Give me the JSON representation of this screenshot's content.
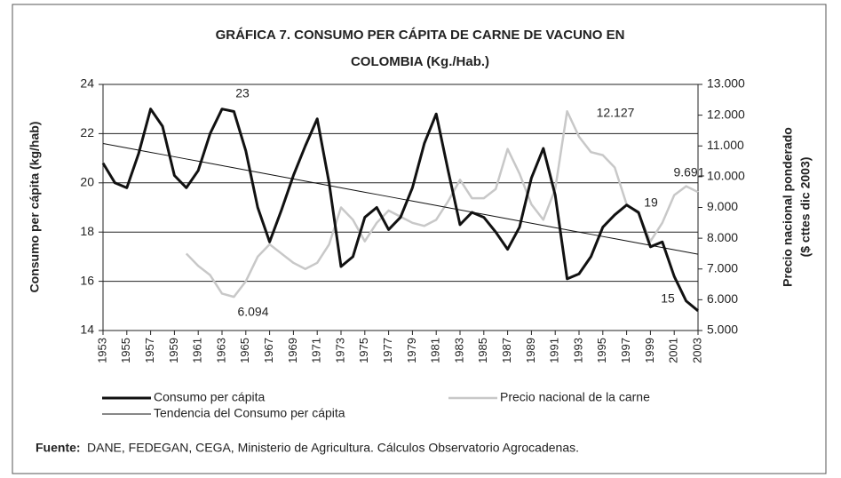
{
  "chart_data": {
    "type": "line",
    "title": [
      "GRÁFICA 7. CONSUMO PER CÁPITA DE CARNE DE VACUNO EN",
      "COLOMBIA (Kg./Hab.)"
    ],
    "ylabel": "Consumo per cápita (kg/hab)",
    "y2label": [
      "Precio nacional ponderado",
      "($ cttes dic 2003)"
    ],
    "x": [
      1953,
      1954,
      1955,
      1956,
      1957,
      1958,
      1959,
      1960,
      1961,
      1962,
      1963,
      1964,
      1965,
      1966,
      1967,
      1968,
      1969,
      1970,
      1971,
      1972,
      1973,
      1974,
      1975,
      1976,
      1977,
      1978,
      1979,
      1980,
      1981,
      1982,
      1983,
      1984,
      1985,
      1986,
      1987,
      1988,
      1989,
      1990,
      1991,
      1992,
      1993,
      1994,
      1995,
      1996,
      1997,
      1998,
      1999,
      2000,
      2001,
      2002,
      2003
    ],
    "xlim": [
      1953,
      2003
    ],
    "xticks": [
      1953,
      1955,
      1957,
      1959,
      1961,
      1963,
      1965,
      1967,
      1969,
      1971,
      1973,
      1975,
      1977,
      1979,
      1981,
      1983,
      1985,
      1987,
      1989,
      1991,
      1993,
      1995,
      1997,
      1999,
      2001,
      2003
    ],
    "ylim": [
      14,
      24
    ],
    "yticks": [
      14,
      16,
      18,
      20,
      22,
      24
    ],
    "y2lim": [
      5000,
      13000
    ],
    "y2ticks": [
      {
        "value": 5000,
        "label": "5.000"
      },
      {
        "value": 6000,
        "label": "6.000"
      },
      {
        "value": 7000,
        "label": "7.000"
      },
      {
        "value": 8000,
        "label": "8.000"
      },
      {
        "value": 9000,
        "label": "9.000"
      },
      {
        "value": 10000,
        "label": "10.000"
      },
      {
        "value": 11000,
        "label": "11.000"
      },
      {
        "value": 12000,
        "label": "12.000"
      },
      {
        "value": 13000,
        "label": "13.000"
      }
    ],
    "grid": true,
    "series": [
      {
        "name": "Consumo per cápita",
        "color": "#111111",
        "width": 3,
        "values": [
          20.8,
          20.0,
          19.8,
          21.2,
          23.0,
          22.3,
          20.3,
          19.8,
          20.5,
          22.0,
          23.0,
          22.9,
          21.3,
          19.0,
          17.6,
          18.9,
          20.3,
          21.5,
          22.6,
          20.0,
          16.6,
          17.0,
          18.6,
          19.0,
          18.1,
          18.6,
          19.8,
          21.6,
          22.8,
          20.5,
          18.3,
          18.8,
          18.6,
          18.0,
          17.3,
          18.2,
          20.2,
          21.4,
          19.5,
          16.1,
          16.3,
          17.0,
          18.2,
          18.7,
          19.1,
          18.8,
          17.4,
          17.6,
          16.2,
          15.2,
          14.8
        ]
      },
      {
        "name": "Precio nacional de la carne",
        "color": "#c8c8c8",
        "width": 2.5,
        "axis": "y2",
        "values": [
          null,
          null,
          null,
          null,
          null,
          null,
          null,
          7500,
          7100,
          6800,
          6200,
          6094,
          6600,
          7400,
          7800,
          7500,
          7200,
          7000,
          7200,
          7800,
          9000,
          8600,
          7900,
          8500,
          8900,
          8700,
          8500,
          8400,
          8600,
          9200,
          9900,
          9300,
          9300,
          9600,
          10900,
          10100,
          9100,
          8600,
          9600,
          12127,
          11300,
          10800,
          10700,
          10300,
          9100,
          8800,
          7900,
          8500,
          9400,
          9691,
          9500
        ]
      },
      {
        "name": "Tendencia del Consumo per cápita",
        "color": "#111111",
        "width": 1,
        "values": [
          21.6,
          21.51,
          21.42,
          21.33,
          21.24,
          21.15,
          21.06,
          20.97,
          20.88,
          20.79,
          20.7,
          20.61,
          20.52,
          20.43,
          20.34,
          20.25,
          20.16,
          20.07,
          19.98,
          19.89,
          19.8,
          19.71,
          19.62,
          19.53,
          19.44,
          19.35,
          19.26,
          19.17,
          19.08,
          18.99,
          18.9,
          18.81,
          18.72,
          18.63,
          18.54,
          18.45,
          18.36,
          18.27,
          18.18,
          18.09,
          18.0,
          17.91,
          17.82,
          17.73,
          17.64,
          17.55,
          17.46,
          17.37,
          17.28,
          17.19,
          17.1
        ]
      }
    ],
    "annotations": [
      "23",
      "6.094",
      "12.127",
      "9.691",
      "19",
      "15"
    ],
    "source_label": "Fuente:",
    "source": "DANE, FEDEGAN, CEGA, Ministerio de Agricultura. Cálculos Observatorio Agrocadenas."
  }
}
